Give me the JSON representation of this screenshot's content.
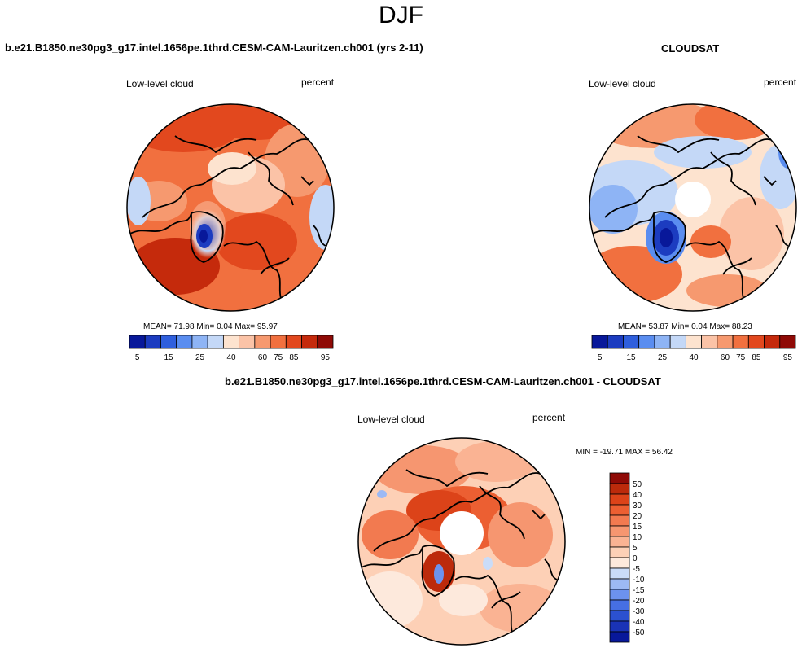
{
  "page_title": "DJF",
  "panels": {
    "model": {
      "header": "b.e21.B1850.ne30pg3_g17.intel.1656pe.1thrd.CESM-CAM-Lauritzen.ch001 (yrs 2-11)",
      "variable": "Low-level cloud",
      "units": "percent",
      "mean_label": "MEAN=",
      "mean": "71.98",
      "min_label": "Min=",
      "min": "0.04",
      "max_label": "Max=",
      "max": "95.97"
    },
    "obs": {
      "header": "CLOUDSAT",
      "variable": "Low-level cloud",
      "units": "percent",
      "mean_label": "MEAN=",
      "mean": "53.87",
      "min_label": "Min=",
      "min": "0.04",
      "max_label": "Max=",
      "max": "88.23"
    },
    "diff": {
      "header": "b.e21.B1850.ne30pg3_g17.intel.1656pe.1thrd.CESM-CAM-Lauritzen.ch001 - CLOUDSAT",
      "variable": "Low-level cloud",
      "units": "percent",
      "minmax": "MIN = -19.71 MAX =  56.42"
    }
  },
  "colorbars": {
    "abs": {
      "colors": [
        "#08189a",
        "#1c3cc0",
        "#2f5fdd",
        "#5a8df0",
        "#8eb4f5",
        "#c4d8f7",
        "#fde3cf",
        "#fbc3a7",
        "#f6996f",
        "#f1703f",
        "#e2481e",
        "#c52a0c",
        "#8f0a06"
      ],
      "labels": [
        "5",
        "15",
        "25",
        "40",
        "60",
        "75",
        "85",
        "95"
      ]
    },
    "diff": {
      "colors": [
        "#08189a",
        "#1a33b6",
        "#2b51d0",
        "#466fe3",
        "#6c92ee",
        "#9cb9f4",
        "#cadcf8",
        "#fde9dc",
        "#fdd0b6",
        "#fab393",
        "#f69670",
        "#f27a50",
        "#ec5f32",
        "#dc4319",
        "#bc2a0b",
        "#8f0a06"
      ],
      "labels": [
        "50",
        "40",
        "30",
        "20",
        "15",
        "10",
        "5",
        "0",
        "-5",
        "-10",
        "-15",
        "-20",
        "-30",
        "-40",
        "-50"
      ]
    }
  }
}
